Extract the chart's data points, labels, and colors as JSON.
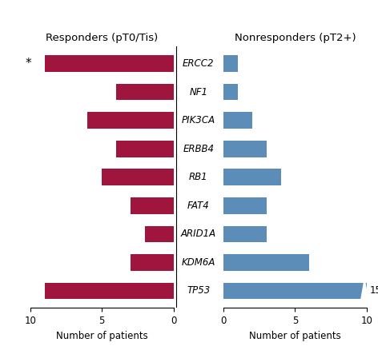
{
  "genes": [
    "ERCC2",
    "NF1",
    "PIK3CA",
    "ERBB4",
    "RB1",
    "FAT4",
    "ARID1A",
    "KDM6A",
    "TP53"
  ],
  "responders": [
    9,
    4,
    6,
    4,
    5,
    3,
    2,
    3,
    9
  ],
  "nonresponders_display": [
    1,
    1,
    2,
    3,
    4,
    3,
    3,
    6,
    10
  ],
  "tp53_true_value": 15,
  "responder_color": "#A0153E",
  "nonresponder_color": "#5B8DB8",
  "background_color": "#FFFFFF",
  "title_left": "Responders (pT0/Tis)",
  "title_right": "Nonresponders (pT2+)",
  "xlabel": "Number of patients",
  "xlim_left": 10,
  "xlim_right": 10,
  "title_fontsize": 9.5,
  "label_fontsize": 8.5,
  "tick_fontsize": 8.5,
  "gene_fontsize": 8.5,
  "bar_height": 0.58
}
